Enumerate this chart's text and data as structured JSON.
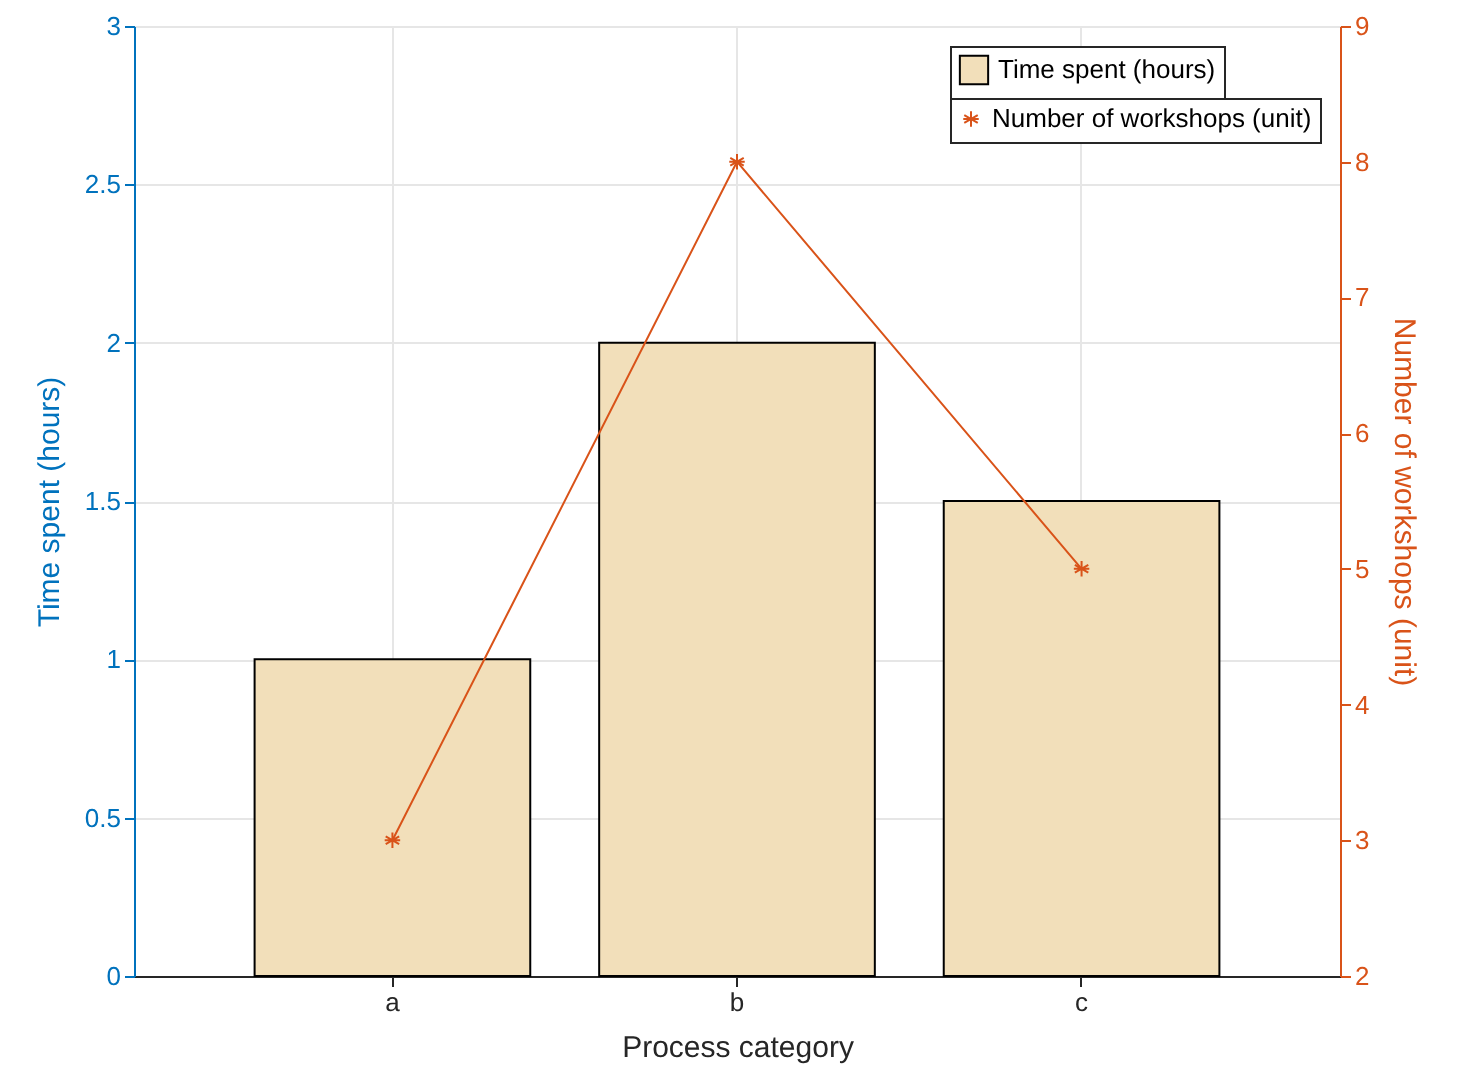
{
  "chart_data": {
    "type": "bar",
    "xlabel": "Process category",
    "ylabel": "Time spent (hours)",
    "y2label": "Number of workshops (unit)",
    "categories": [
      "a",
      "b",
      "c"
    ],
    "series": [
      {
        "name": "Time spent (hours)",
        "color": "#f2dfba",
        "values": [
          1,
          2,
          1.5
        ]
      },
      {
        "name": "Number of workshops (unit)",
        "type": "line",
        "axis": "y2",
        "color": "#d95319",
        "marker": "cross",
        "values": [
          3,
          8,
          5
        ]
      }
    ],
    "ylim": [
      0,
      3
    ],
    "yticks": [
      0,
      0.5,
      1,
      1.5,
      2,
      2.5,
      3
    ],
    "y2lim": [
      2,
      9
    ],
    "y2ticks": [
      2,
      3,
      4,
      5,
      6,
      7,
      8,
      9
    ],
    "grid": true,
    "legend": "top right"
  }
}
